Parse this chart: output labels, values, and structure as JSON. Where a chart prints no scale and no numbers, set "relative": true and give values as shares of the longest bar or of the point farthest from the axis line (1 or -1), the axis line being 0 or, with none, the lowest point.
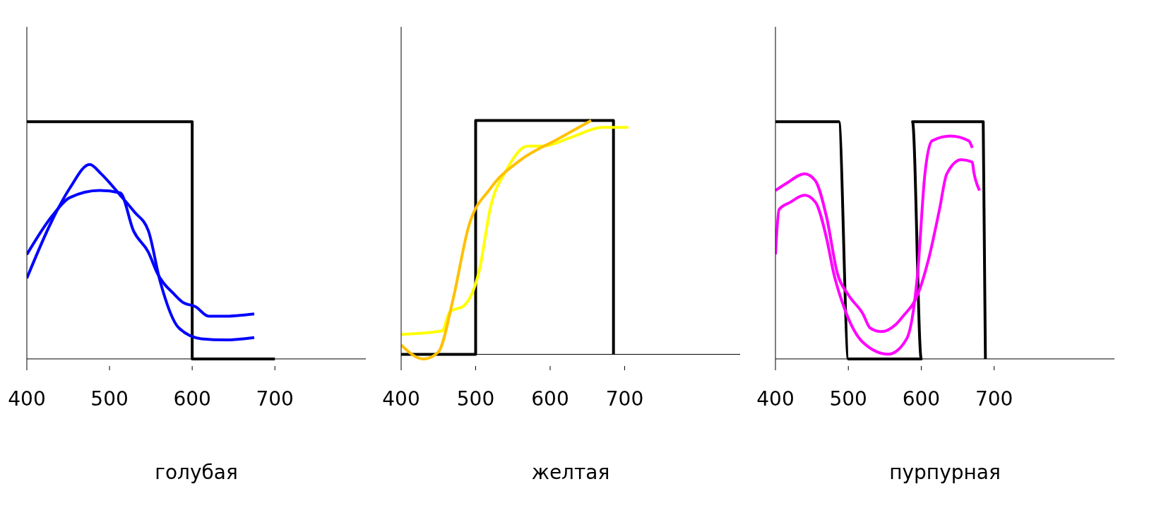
{
  "chart_data": [
    {
      "type": "line",
      "xlabel": "голубая",
      "relative": true,
      "xlim": [
        400,
        810
      ],
      "xticks": [
        400,
        500,
        600,
        700
      ],
      "marker": "none",
      "line_style": "solid",
      "series": [
        {
          "color": "#000000",
          "x": [
            400,
            600,
            600,
            700
          ],
          "values": [
            1,
            1,
            0,
            0
          ]
        },
        {
          "color": "#0000ff",
          "x": [
            400,
            430,
            452,
            476,
            490,
            513,
            530,
            547,
            561,
            584,
            611,
            640,
            675
          ],
          "values": [
            0.34,
            0.58,
            0.72,
            0.82,
            0.78,
            0.69,
            0.62,
            0.54,
            0.33,
            0.13,
            0.085,
            0.08,
            0.09
          ]
        },
        {
          "color": "#0000ff",
          "x": [
            400,
            430,
            452,
            488,
            513,
            529,
            547,
            558,
            579,
            588,
            604,
            620,
            638,
            675
          ],
          "values": [
            0.44,
            0.6,
            0.68,
            0.71,
            0.7,
            0.54,
            0.45,
            0.36,
            0.27,
            0.24,
            0.22,
            0.18,
            0.18,
            0.19
          ]
        }
      ]
    },
    {
      "type": "line",
      "xlabel": "желтая",
      "relative": true,
      "xlim": [
        400,
        855
      ],
      "xticks": [
        400,
        500,
        600,
        700
      ],
      "marker": "none",
      "line_style": "solid",
      "series": [
        {
          "color": "#000000",
          "x": [
            400,
            500,
            500,
            685,
            685
          ],
          "values": [
            0,
            0,
            1,
            1,
            0
          ]
        },
        {
          "color": "#ffff00",
          "x": [
            400,
            455,
            465,
            485,
            505,
            520,
            540,
            570,
            590,
            630,
            670,
            705
          ],
          "values": [
            0.085,
            0.1,
            0.18,
            0.21,
            0.36,
            0.63,
            0.78,
            0.89,
            0.89,
            0.93,
            0.97,
            0.97
          ]
        },
        {
          "color": "#ffc000",
          "x": [
            400,
            430,
            450,
            470,
            490,
            520,
            560,
            610,
            655
          ],
          "values": [
            0.04,
            -0.02,
            0.01,
            0.24,
            0.54,
            0.71,
            0.83,
            0.92,
            1
          ]
        }
      ]
    },
    {
      "type": "line",
      "xlabel": "пурпурная",
      "relative": true,
      "xlim": [
        400,
        865
      ],
      "xticks": [
        400,
        500,
        600,
        700
      ],
      "marker": "none",
      "line_style": "solid",
      "series": [
        {
          "color": "#000000",
          "x": [
            400,
            487,
            500,
            600,
            588,
            685,
            688
          ],
          "values": [
            1,
            1,
            0,
            0,
            1,
            1,
            0
          ]
        },
        {
          "color": "#ff00ff",
          "x": [
            400,
            415,
            440,
            455,
            470,
            485,
            500,
            520,
            530,
            545,
            565,
            575,
            595,
            610,
            625,
            635,
            655,
            670,
            672,
            680
          ],
          "values": [
            0.71,
            0.74,
            0.78,
            0.75,
            0.6,
            0.36,
            0.27,
            0.19,
            0.13,
            0.115,
            0.145,
            0.18,
            0.27,
            0.42,
            0.63,
            0.78,
            0.84,
            0.83,
            0.79,
            0.71
          ]
        },
        {
          "color": "#ff00ff",
          "x": [
            400,
            405,
            420,
            440,
            455,
            470,
            480,
            495,
            520,
            555,
            580,
            595,
            605,
            615,
            640,
            665,
            670
          ],
          "values": [
            0.44,
            0.63,
            0.66,
            0.69,
            0.66,
            0.51,
            0.36,
            0.21,
            0.07,
            0.02,
            0.085,
            0.36,
            0.78,
            0.92,
            0.94,
            0.92,
            0.89
          ]
        }
      ]
    }
  ]
}
